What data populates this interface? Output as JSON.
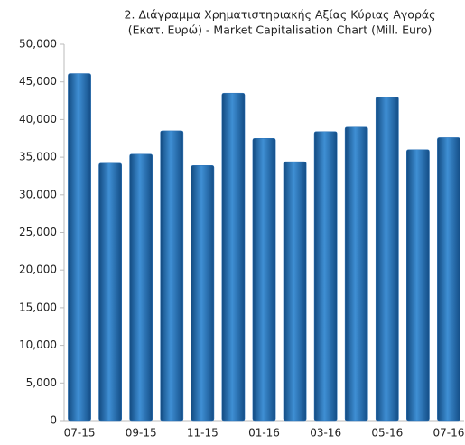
{
  "chart_data": {
    "type": "bar",
    "title": [
      "2. Διάγραμμα Χρηματιστηριακής Αξίας Κύριας Αγοράς",
      "(Εκατ. Ευρώ) - Market Capitalisation Chart (Mill. Euro)"
    ],
    "categories": [
      "07-15",
      null,
      "09-15",
      null,
      "11-15",
      null,
      "01-16",
      null,
      "03-16",
      null,
      "05-16",
      null,
      "07-16"
    ],
    "values": [
      46100,
      34200,
      35400,
      38500,
      33900,
      43500,
      37500,
      34400,
      38400,
      39000,
      43000,
      36000,
      37600
    ],
    "color": "#2a72b8",
    "ylim": [
      0,
      50000
    ],
    "yticks": [
      0,
      {
        "value": 5000,
        "label": "5,000"
      },
      {
        "value": 10000,
        "label": "10,000"
      },
      {
        "value": 15000,
        "label": "15,000"
      },
      {
        "value": 20000,
        "label": "20,000"
      },
      {
        "value": 25000,
        "label": "25,000"
      },
      {
        "value": 30000,
        "label": "30,000"
      },
      {
        "value": 35000,
        "label": "35,000"
      },
      {
        "value": 40000,
        "label": "40,000"
      },
      {
        "value": 45000,
        "label": "45,000"
      },
      {
        "value": 50000,
        "label": "50,000"
      }
    ],
    "grid": false
  }
}
